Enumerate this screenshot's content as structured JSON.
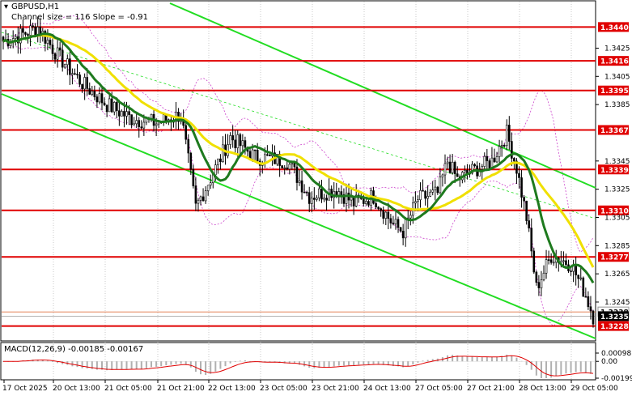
{
  "chart_data": {
    "type": "candlestick",
    "symbol": "GBPUSD,H1",
    "indicator_text": "Channel size = 116 Slope = -0.91",
    "price_axis": {
      "min": 1.3218,
      "max": 1.3458,
      "ticks": [
        "1.3425",
        "1.3405",
        "1.3385",
        "1.3345",
        "1.3325",
        "1.3305",
        "1.3285",
        "1.3265",
        "1.3245"
      ]
    },
    "time_labels": [
      "17 Oct 2025",
      "20 Oct 13:00",
      "21 Oct 05:00",
      "21 Oct 21:00",
      "22 Oct 13:00",
      "23 Oct 05:00",
      "23 Oct 21:00",
      "24 Oct 13:00",
      "27 Oct 05:00",
      "27 Oct 21:00",
      "28 Oct 13:00",
      "29 Oct 05:00"
    ],
    "levels": [
      {
        "price": 1.344,
        "label": "1.3440"
      },
      {
        "price": 1.3416,
        "label": "1.3416"
      },
      {
        "price": 1.3395,
        "label": "1.3395"
      },
      {
        "price": 1.3367,
        "label": "1.3367"
      },
      {
        "price": 1.3339,
        "label": "1.3339"
      },
      {
        "price": 1.331,
        "label": "1.3310"
      },
      {
        "price": 1.3277,
        "label": "1.3277"
      },
      {
        "price": 1.3228,
        "label": "1.3228"
      }
    ],
    "current_price": {
      "price": 1.3235,
      "label": "1.3235"
    },
    "prev_price": {
      "price": 1.3238,
      "label": "1.3238"
    },
    "macd": {
      "label": "MACD(12,26,9) -0.00185 -0.00167",
      "ticks": [
        "0.00098",
        "0.00",
        "-0.00199"
      ],
      "range": [
        -0.00199,
        0.00098
      ]
    },
    "colors": {
      "level": "#e00000",
      "channel": "#22dd22",
      "ma_fast": "#1e7a1e",
      "ma_slow": "#f0e000",
      "bands": "#cc44cc",
      "candle": "#000000",
      "macd_hist": "#b0b0b0",
      "macd_signal": "#e00000"
    }
  }
}
